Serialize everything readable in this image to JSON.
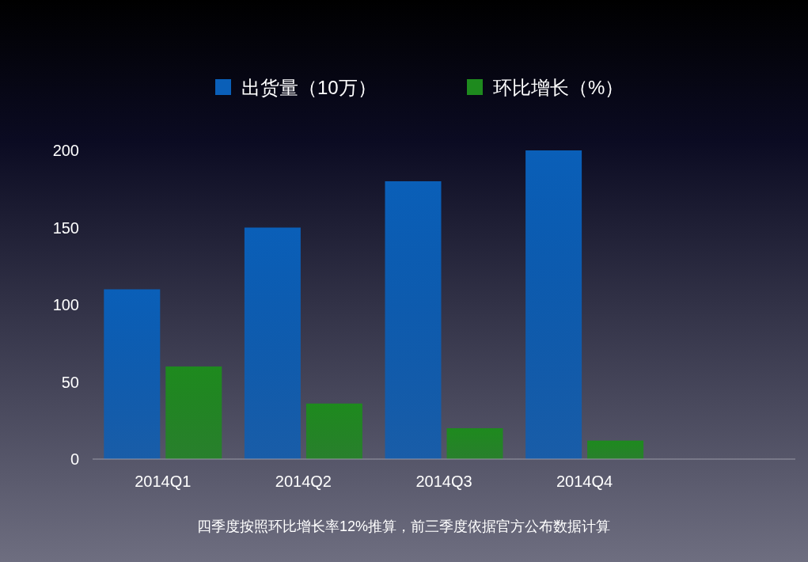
{
  "chart_data": {
    "type": "bar",
    "categories": [
      "2014Q1",
      "2014Q2",
      "2014Q3",
      "2014Q4",
      null
    ],
    "series": [
      {
        "name": "出货量（10万）",
        "color": "#0a5fb8",
        "values": [
          110,
          150,
          180,
          200,
          null
        ]
      },
      {
        "name": "环比增长（%）",
        "color": "#1e8a1e",
        "values": [
          60,
          36,
          20,
          12,
          null
        ]
      }
    ],
    "ylim": [
      0,
      200
    ],
    "yticks": [
      0,
      50,
      100,
      150,
      200
    ],
    "grid": false,
    "legend": "top",
    "annotations": [
      "四季度按照环比增长率12%推算，前三季度依据官方公布数据计算"
    ]
  }
}
